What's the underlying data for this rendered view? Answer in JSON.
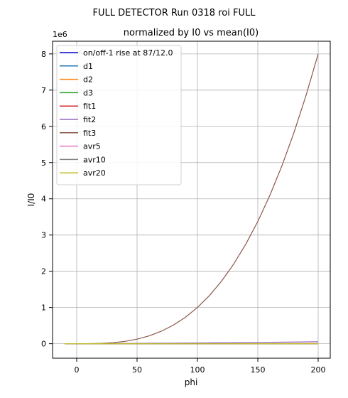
{
  "figure": {
    "suptitle": "FULL DETECTOR Run 0318 roi FULL"
  },
  "chart_data": {
    "type": "line",
    "title": "normalized by I0 vs mean(I0)",
    "xlabel": "phi",
    "ylabel": "I/I0",
    "y_offset_label": "1e6",
    "xlim": [
      -20,
      210
    ],
    "ylim": [
      -0.4,
      8.35
    ],
    "y_scale_factor": 1000000,
    "x_ticks": [
      0,
      50,
      100,
      150,
      200
    ],
    "y_ticks": [
      0,
      1,
      2,
      3,
      4,
      5,
      6,
      7,
      8
    ],
    "grid": true,
    "legend_position": "top-left",
    "series": [
      {
        "name": "on/off-1 rise at 87/12.0",
        "color": "#0000cc",
        "x": [
          -10,
          200
        ],
        "y": [
          0,
          0
        ]
      },
      {
        "name": "d1",
        "color": "#1f77b4",
        "x": [
          -10,
          200
        ],
        "y": [
          0,
          0
        ]
      },
      {
        "name": "d2",
        "color": "#ff7f0e",
        "x": [
          -10,
          200
        ],
        "y": [
          0,
          0
        ]
      },
      {
        "name": "d3",
        "color": "#2ca02c",
        "x": [
          -10,
          200
        ],
        "y": [
          0,
          0
        ]
      },
      {
        "name": "fit1",
        "color": "#d62728",
        "x": [
          -10,
          200
        ],
        "y": [
          0.001,
          0.005
        ]
      },
      {
        "name": "fit2",
        "color": "#9467bd",
        "x": [
          -10,
          0,
          50,
          100,
          150,
          200
        ],
        "y": [
          -0.002,
          0.0,
          0.01,
          0.02,
          0.035,
          0.055
        ]
      },
      {
        "name": "fit3",
        "color": "#8c564b",
        "x": [
          -10,
          0,
          10,
          20,
          30,
          40,
          50,
          60,
          70,
          80,
          90,
          100,
          110,
          120,
          130,
          140,
          150,
          160,
          170,
          180,
          190,
          200
        ],
        "y": [
          -0.001,
          0.0,
          0.001,
          0.008,
          0.027,
          0.064,
          0.125,
          0.216,
          0.343,
          0.512,
          0.729,
          1.0,
          1.331,
          1.728,
          2.197,
          2.744,
          3.375,
          4.096,
          4.913,
          5.832,
          6.859,
          8.0
        ]
      },
      {
        "name": "avr5",
        "color": "#e377c2",
        "x": [
          -10,
          200
        ],
        "y": [
          0,
          0
        ]
      },
      {
        "name": "avr10",
        "color": "#7f7f7f",
        "x": [
          -10,
          200
        ],
        "y": [
          0,
          0
        ]
      },
      {
        "name": "avr20",
        "color": "#bcbd22",
        "x": [
          -10,
          200
        ],
        "y": [
          0,
          0
        ]
      }
    ]
  }
}
